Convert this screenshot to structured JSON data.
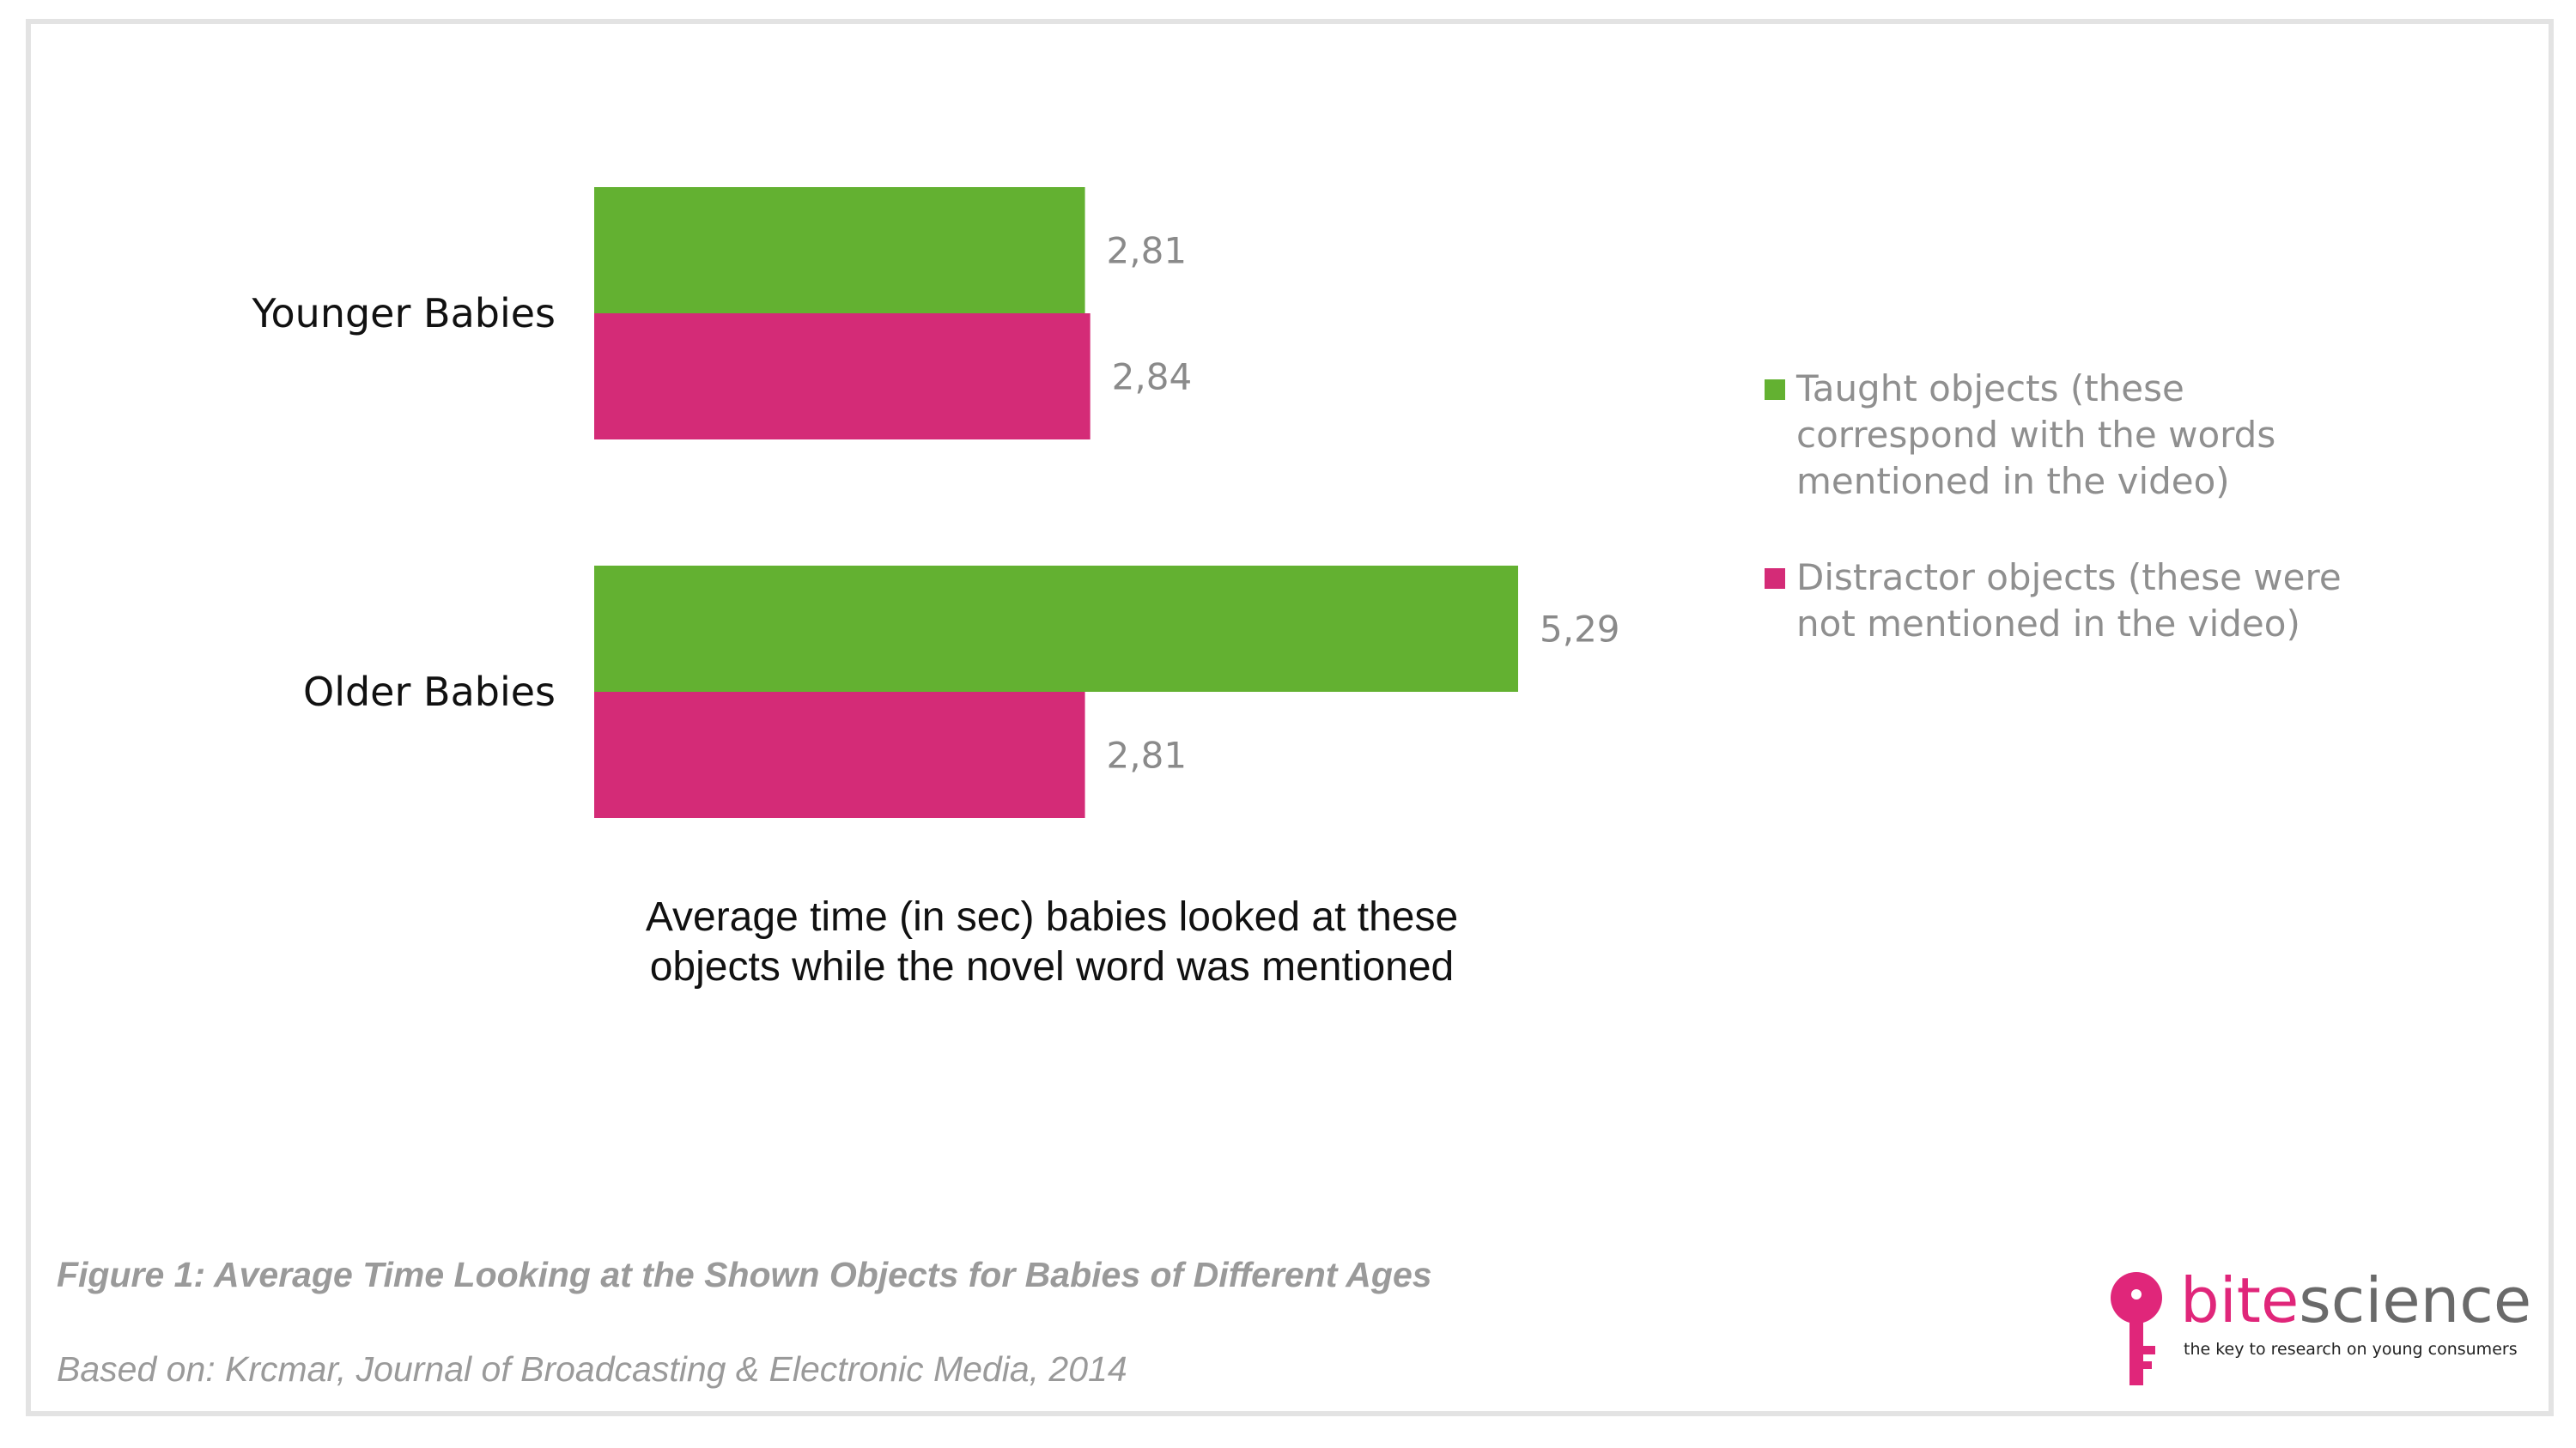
{
  "chart_data": {
    "type": "bar",
    "orientation": "horizontal",
    "categories": [
      "Younger Babies",
      "Older Babies"
    ],
    "series": [
      {
        "name": "Taught objects (these correspond with the words mentioned in the video)",
        "color": "#63b131",
        "values": [
          2.81,
          5.29
        ],
        "labels": [
          "2,81",
          "5,29"
        ]
      },
      {
        "name": "Distractor objects (these were not mentioned in the video)",
        "color": "#d42b77",
        "values": [
          2.84,
          2.81
        ],
        "labels": [
          "2,84",
          "2,81"
        ]
      }
    ],
    "xlabel": "Average time (in sec) babies looked at these objects while the novel word was mentioned",
    "xlim": [
      0,
      5.29
    ],
    "grid": false,
    "axes_visible": false,
    "legend_position": "right"
  },
  "legend": {
    "items": [
      {
        "color": "#63b131",
        "lines": [
          "Taught objects (these",
          "correspond with the words",
          "mentioned in the video)"
        ]
      },
      {
        "color": "#d42b77",
        "lines": [
          "Distractor objects (these were",
          "not mentioned in the video)"
        ]
      }
    ]
  },
  "caption": {
    "lines": [
      "Average time (in sec) babies looked at these",
      "objects while the novel word was mentioned"
    ]
  },
  "figure": {
    "title": "Figure 1: Average Time Looking at the Shown Objects for Babies of Different Ages",
    "source": "Based on: Krcmar, Journal of Broadcasting & Electronic Media, 2014"
  },
  "logo": {
    "word_bite": "bite",
    "word_science": "science",
    "tagline": "the key to research on young consumers",
    "icon": "key-icon",
    "key_color": "#e0267a"
  }
}
